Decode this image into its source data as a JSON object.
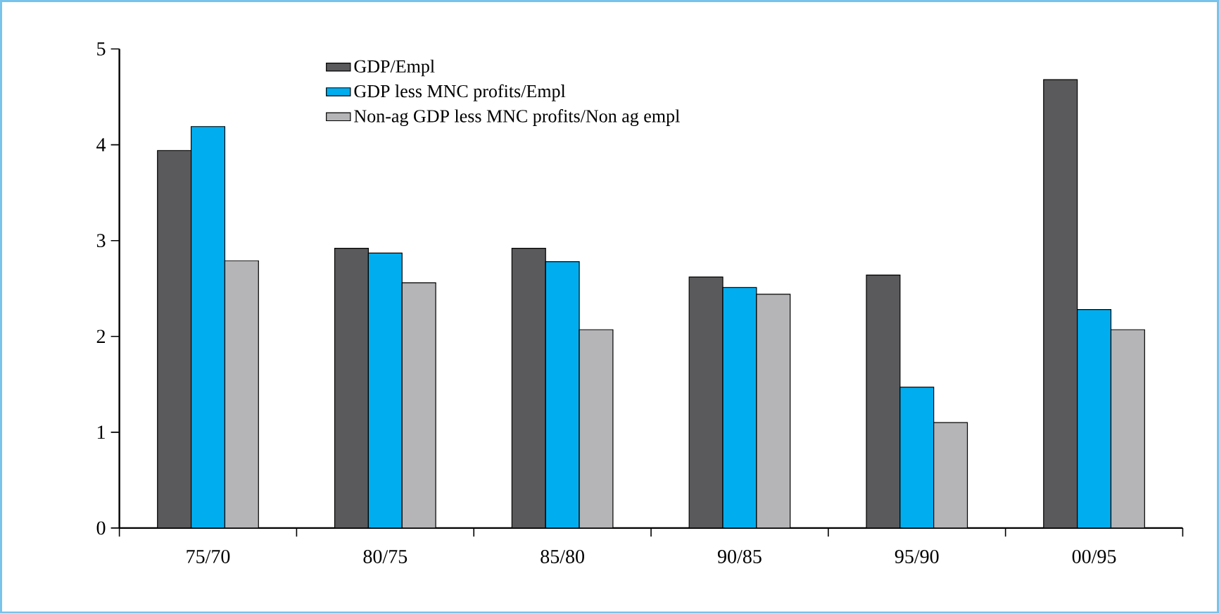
{
  "chart_data": {
    "type": "bar",
    "categories": [
      "75/70",
      "80/75",
      "85/80",
      "90/85",
      "95/90",
      "00/95"
    ],
    "series": [
      {
        "name": "GDP/Empl",
        "color": "#5a5a5c",
        "values": [
          3.94,
          2.92,
          2.92,
          2.62,
          2.64,
          4.68
        ]
      },
      {
        "name": "GDP less MNC profits/Empl",
        "color": "#00aeef",
        "values": [
          4.19,
          2.87,
          2.78,
          2.51,
          1.47,
          2.28
        ]
      },
      {
        "name": "Non-ag GDP less MNC profits/Non ag empl",
        "color": "#b5b5b7",
        "values": [
          2.79,
          2.56,
          2.07,
          2.44,
          1.1,
          2.07
        ]
      }
    ],
    "ylim": [
      0,
      5
    ],
    "yticks": [
      0,
      1,
      2,
      3,
      4,
      5
    ],
    "legend": "top"
  }
}
